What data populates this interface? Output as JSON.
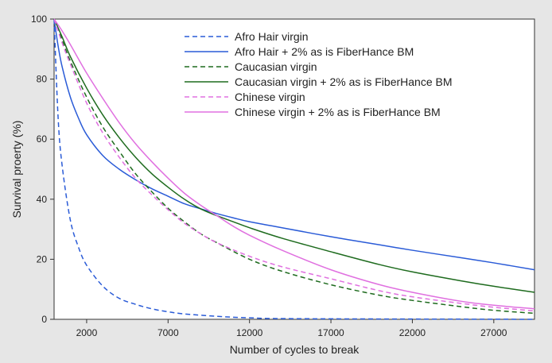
{
  "chart_data": {
    "type": "line",
    "title": "",
    "xlabel": "Number of cycles to break",
    "ylabel": "Survival proerty (%)",
    "xlim": [
      1,
      29500
    ],
    "ylim": [
      0,
      100
    ],
    "xticks": [
      2000,
      7000,
      12000,
      17000,
      22000,
      27000
    ],
    "yticks": [
      0,
      20,
      40,
      60,
      80,
      100
    ],
    "grid": false,
    "legend_position": "top-right",
    "series": [
      {
        "name": "Afro Hair virgin",
        "color": "#2a5bd7",
        "dash": "dashed",
        "x": [
          1,
          250,
          500,
          1000,
          1500,
          2000,
          3000,
          4000,
          5000,
          6000,
          7000,
          8000,
          10000,
          12000,
          15000,
          29500
        ],
        "y": [
          100,
          67,
          51,
          33,
          24,
          18,
          11,
          7,
          5,
          3.5,
          2.5,
          1.8,
          1,
          0.5,
          0.2,
          0
        ]
      },
      {
        "name": "Afro Hair + 2% as is FiberHance BM",
        "color": "#2a5bd7",
        "dash": "solid",
        "x": [
          1,
          250,
          500,
          1000,
          1500,
          2000,
          3000,
          4000,
          5000,
          6000,
          7000,
          8000,
          9000,
          10000,
          11000,
          12000,
          14000,
          17000,
          20000,
          22000,
          25000,
          27000,
          29500
        ],
        "y": [
          100,
          91,
          84,
          74,
          67,
          61.5,
          54.5,
          50,
          46.5,
          43.5,
          41,
          38.5,
          36.8,
          35.2,
          33.8,
          32.5,
          30.5,
          27.5,
          24.8,
          23,
          20.5,
          18.8,
          16.5
        ]
      },
      {
        "name": "Caucasian virgin",
        "color": "#1e6b1e",
        "dash": "dashed",
        "x": [
          1,
          500,
          1000,
          2000,
          3000,
          4000,
          5000,
          6000,
          7000,
          8000,
          9000,
          10000,
          12000,
          14000,
          17000,
          20000,
          22000,
          25000,
          27000,
          29500
        ],
        "y": [
          100,
          93,
          86,
          74,
          64,
          56,
          48.5,
          42.5,
          37,
          32.5,
          28.5,
          25.5,
          20,
          16,
          11.5,
          8,
          6.3,
          4.2,
          3,
          2
        ]
      },
      {
        "name": "Caucasian virgin + 2% as is FiberHance BM",
        "color": "#1e6b1e",
        "dash": "solid",
        "x": [
          1,
          500,
          1000,
          2000,
          3000,
          4000,
          5000,
          6000,
          7000,
          8000,
          9000,
          10000,
          11000,
          12000,
          14000,
          17000,
          20000,
          22000,
          25000,
          27000,
          29500
        ],
        "y": [
          100,
          94,
          87.5,
          77,
          68,
          60.5,
          54,
          48.5,
          44,
          40,
          36.8,
          34.5,
          32.5,
          30.5,
          27,
          22.5,
          18.2,
          15.8,
          12.8,
          11,
          9
        ]
      },
      {
        "name": "Chinese virgin",
        "color": "#e070e0",
        "dash": "dashed",
        "x": [
          1,
          500,
          1000,
          2000,
          3000,
          4000,
          5000,
          6000,
          7000,
          8000,
          9000,
          10000,
          12000,
          14000,
          17000,
          20000,
          22000,
          25000,
          27000,
          29500
        ],
        "y": [
          100,
          92,
          85,
          72,
          62,
          54,
          47,
          41.5,
          36.5,
          32,
          28.5,
          25.5,
          21,
          17.5,
          13.5,
          9.5,
          7.5,
          5.3,
          4,
          2.8
        ]
      },
      {
        "name": "Chinese virgin + 2% as is FiberHance BM",
        "color": "#e070e0",
        "dash": "solid",
        "x": [
          1,
          500,
          1000,
          2000,
          3000,
          4000,
          5000,
          6000,
          7000,
          8000,
          9000,
          10000,
          11000,
          12000,
          14000,
          17000,
          20000,
          22000,
          25000,
          27000,
          29500
        ],
        "y": [
          100,
          96,
          91.5,
          82,
          73.5,
          65.5,
          58.5,
          52.5,
          47,
          42,
          38,
          34.5,
          31,
          28,
          23,
          16.5,
          11.5,
          9,
          6,
          4.7,
          3.5
        ]
      }
    ]
  }
}
